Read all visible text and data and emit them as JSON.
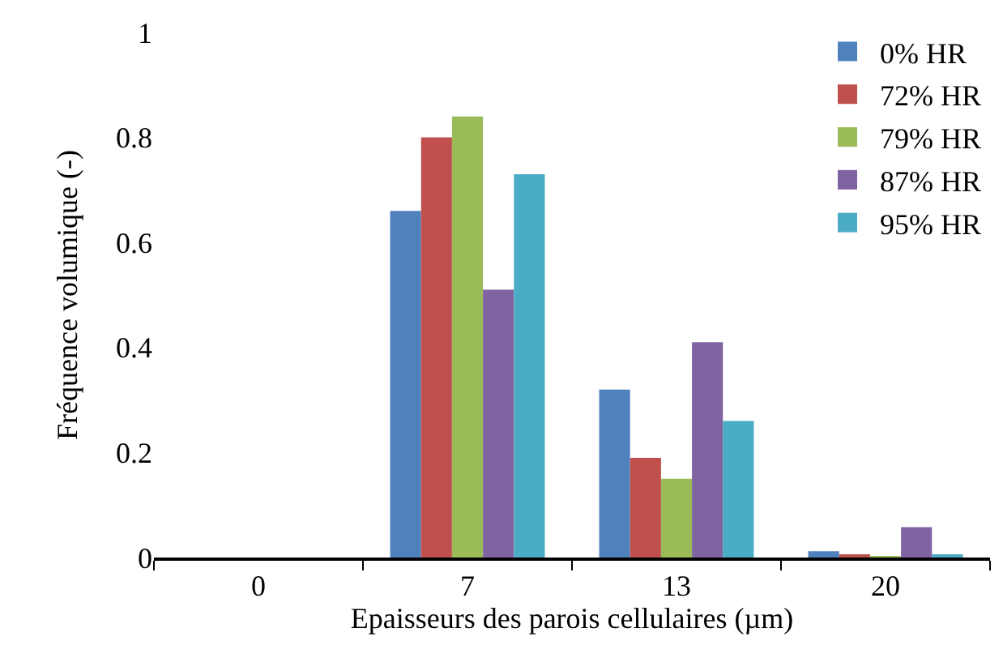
{
  "chart_data": {
    "type": "bar",
    "xlabel": "Epaisseurs des parois cellulaires (µm)",
    "ylabel": "Fréquence volumique (-)",
    "categories": [
      "0",
      "7",
      "13",
      "20"
    ],
    "series": [
      {
        "name": "0% HR",
        "color": "#4f81bd",
        "values": [
          0,
          0.66,
          0.32,
          0.012
        ]
      },
      {
        "name": "72% HR",
        "color": "#c0504d",
        "values": [
          0,
          0.8,
          0.19,
          0.005
        ]
      },
      {
        "name": "79% HR",
        "color": "#9bbb59",
        "values": [
          0,
          0.84,
          0.15,
          0.003
        ]
      },
      {
        "name": "87% HR",
        "color": "#8064a2",
        "values": [
          0,
          0.51,
          0.41,
          0.058
        ]
      },
      {
        "name": "95% HR",
        "color": "#4bacc6",
        "values": [
          0,
          0.73,
          0.26,
          0.004
        ]
      }
    ],
    "ylim": [
      0,
      1
    ],
    "yticks": [
      0,
      0.2,
      0.4,
      0.6,
      0.8,
      1
    ],
    "grid": false,
    "legend": "top right"
  }
}
